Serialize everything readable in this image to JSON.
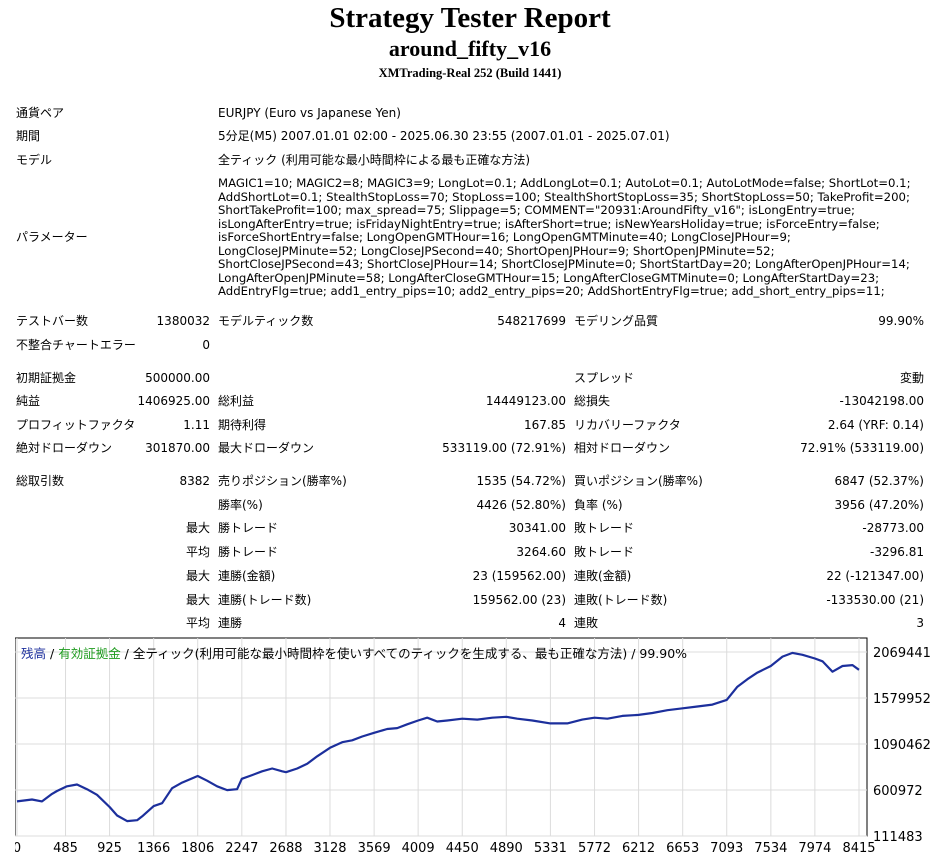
{
  "header": {
    "title": "Strategy Tester Report",
    "ea_name": "around_fifty_v16",
    "server": "XMTrading-Real 252 (Build 1441)"
  },
  "info": {
    "symbol_label": "通貨ペア",
    "symbol_value": "EURJPY (Euro vs Japanese Yen)",
    "period_label": "期間",
    "period_value": "5分足(M5) 2007.01.01 02:00 - 2025.06.30 23:55 (2007.01.01 - 2025.07.01)",
    "model_label": "モデル",
    "model_value": "全ティック (利用可能な最小時間枠による最も正確な方法)",
    "params_label": "パラメーター",
    "params_value": "MAGIC1=10; MAGIC2=8; MAGIC3=9; LongLot=0.1; AddLongLot=0.1; AutoLot=0.1; AutoLotMode=false; ShortLot=0.1; AddShortLot=0.1; StealthStopLoss=70; StopLoss=100; StealthShortStopLoss=35; ShortStopLoss=50; TakeProfit=200; ShortTakeProfit=100; max_spread=75; Slippage=5; COMMENT=\"20931:AroundFifty_v16\"; isLongEntry=true; isLongAfterEntry=true; isFridayNightEntry=true; isAfterShort=true; isNewYearsHoliday=true; isForceEntry=false; isForceShortEntry=false; LongOpenGMTHour=16; LongOpenGMTMinute=40; LongCloseJPHour=9; LongCloseJPMinute=52; LongCloseJPSecond=40; ShortOpenJPHour=9; ShortOpenJPMinute=52; ShortCloseJPSecond=43; ShortCloseJPHour=14; ShortCloseJPMinute=0; ShortStartDay=20; LongAfterOpenJPHour=14; LongAfterOpenJPMinute=58; LongAfterCloseGMTHour=15; LongAfterCloseGMTMinute=0; LongAfterStartDay=23; AddEntryFlg=true; add1_entry_pips=10; add2_entry_pips=20; AddShortEntryFlg=true; add_short_entry_pips=11;"
  },
  "stats": {
    "bars_label": "テストバー数",
    "bars_value": "1380032",
    "ticks_label": "モデルティック数",
    "ticks_value": "548217699",
    "quality_label": "モデリング品質",
    "quality_value": "99.90%",
    "mismatch_label": "不整合チャートエラー",
    "mismatch_value": "0",
    "deposit_label": "初期証拠金",
    "deposit_value": "500000.00",
    "spread_label": "スプレッド",
    "spread_value": "変動",
    "net_label": "純益",
    "net_value": "1406925.00",
    "gross_profit_label": "総利益",
    "gross_profit_value": "14449123.00",
    "gross_loss_label": "総損失",
    "gross_loss_value": "-13042198.00",
    "pf_label": "プロフィットファクタ",
    "pf_value": "1.11",
    "expected_label": "期待利得",
    "expected_value": "167.85",
    "recovery_label": "リカバリーファクタ",
    "recovery_value": "2.64 (YRF: 0.14)",
    "abs_dd_label": "絶対ドローダウン",
    "abs_dd_value": "301870.00",
    "max_dd_label": "最大ドローダウン",
    "max_dd_value": "533119.00 (72.91%)",
    "rel_dd_label": "相対ドローダウン",
    "rel_dd_value": "72.91% (533119.00)",
    "total_trades_label": "総取引数",
    "total_trades_value": "8382",
    "short_label": "売りポジション(勝率%)",
    "short_value": "1535 (54.72%)",
    "long_label": "買いポジション(勝率%)",
    "long_value": "6847 (52.37%)",
    "win_rate_label": "勝率(%)",
    "win_rate_value": "4426 (52.80%)",
    "loss_rate_label": "負率 (%)",
    "loss_rate_value": "3956 (47.20%)",
    "max_label": "最大",
    "avg_label": "平均",
    "largest_win_label": "勝トレード",
    "largest_win_value": "30341.00",
    "largest_loss_label": "敗トレード",
    "largest_loss_value": "-28773.00",
    "avg_win_label": "勝トレード",
    "avg_win_value": "3264.60",
    "avg_loss_label": "敗トレード",
    "avg_loss_value": "-3296.81",
    "max_cons_wins_label": "連勝(金額)",
    "max_cons_wins_value": "23 (159562.00)",
    "max_cons_losses_label": "連敗(金額)",
    "max_cons_losses_value": "22 (-121347.00)",
    "max_cons_profit_label": "連勝(トレード数)",
    "max_cons_profit_value": "159562.00 (23)",
    "max_cons_loss_label": "連敗(トレード数)",
    "max_cons_loss_value": "-133530.00 (21)",
    "avg_cons_wins_label": "連勝",
    "avg_cons_wins_value": "4",
    "avg_cons_losses_label": "連敗",
    "avg_cons_losses_value": "3"
  },
  "chart_legend": {
    "balance": "残高",
    "sep1": " / ",
    "equity": "有効証拠金",
    "rest": " / 全ティック(利用可能な最小時間枠を使いすべてのティックを生成する、最も正確な方法) / 99.90%"
  },
  "colors": {
    "balance_line": "#1c2f9c",
    "equity_legend": "#1e9b1e",
    "grid": "#dcdcdc"
  },
  "chart_data": {
    "type": "line",
    "y_ticks": [
      "2069441",
      "1579952",
      "1090462",
      "600972",
      "111483"
    ],
    "x_ticks": [
      "0",
      "485",
      "925",
      "1366",
      "1806",
      "2247",
      "2688",
      "3128",
      "3569",
      "4009",
      "4450",
      "4890",
      "5331",
      "5772",
      "6212",
      "6653",
      "7093",
      "7534",
      "7974",
      "8415"
    ],
    "ylim": [
      111483,
      2069441
    ],
    "xlim": [
      0,
      8415
    ],
    "grid": true,
    "series": [
      {
        "name": "残高",
        "x": [
          0,
          150,
          250,
          350,
          400,
          500,
          600,
          700,
          800,
          925,
          1000,
          1100,
          1200,
          1250,
          1366,
          1450,
          1550,
          1650,
          1806,
          1900,
          2000,
          2100,
          2200,
          2247,
          2350,
          2450,
          2550,
          2650,
          2688,
          2800,
          2900,
          3000,
          3128,
          3250,
          3350,
          3450,
          3569,
          3700,
          3800,
          3900,
          4009,
          4100,
          4200,
          4300,
          4450,
          4600,
          4750,
          4890,
          5000,
          5150,
          5331,
          5500,
          5650,
          5772,
          5900,
          6050,
          6212,
          6350,
          6500,
          6653,
          6800,
          6950,
          7093,
          7200,
          7300,
          7400,
          7534,
          7650,
          7750,
          7850,
          7974,
          8050,
          8150,
          8250,
          8350,
          8415
        ],
        "values": [
          480000,
          500000,
          480000,
          560000,
          590000,
          640000,
          660000,
          610000,
          550000,
          420000,
          330000,
          270000,
          280000,
          320000,
          430000,
          460000,
          620000,
          680000,
          750000,
          700000,
          640000,
          600000,
          610000,
          720000,
          760000,
          800000,
          830000,
          800000,
          790000,
          830000,
          880000,
          960000,
          1050000,
          1110000,
          1130000,
          1170000,
          1210000,
          1250000,
          1260000,
          1300000,
          1340000,
          1370000,
          1330000,
          1340000,
          1360000,
          1350000,
          1370000,
          1380000,
          1360000,
          1340000,
          1310000,
          1310000,
          1350000,
          1370000,
          1360000,
          1390000,
          1400000,
          1420000,
          1450000,
          1470000,
          1490000,
          1510000,
          1560000,
          1700000,
          1780000,
          1850000,
          1920000,
          2020000,
          2060000,
          2040000,
          2000000,
          1970000,
          1860000,
          1920000,
          1930000,
          1880000
        ]
      }
    ]
  }
}
